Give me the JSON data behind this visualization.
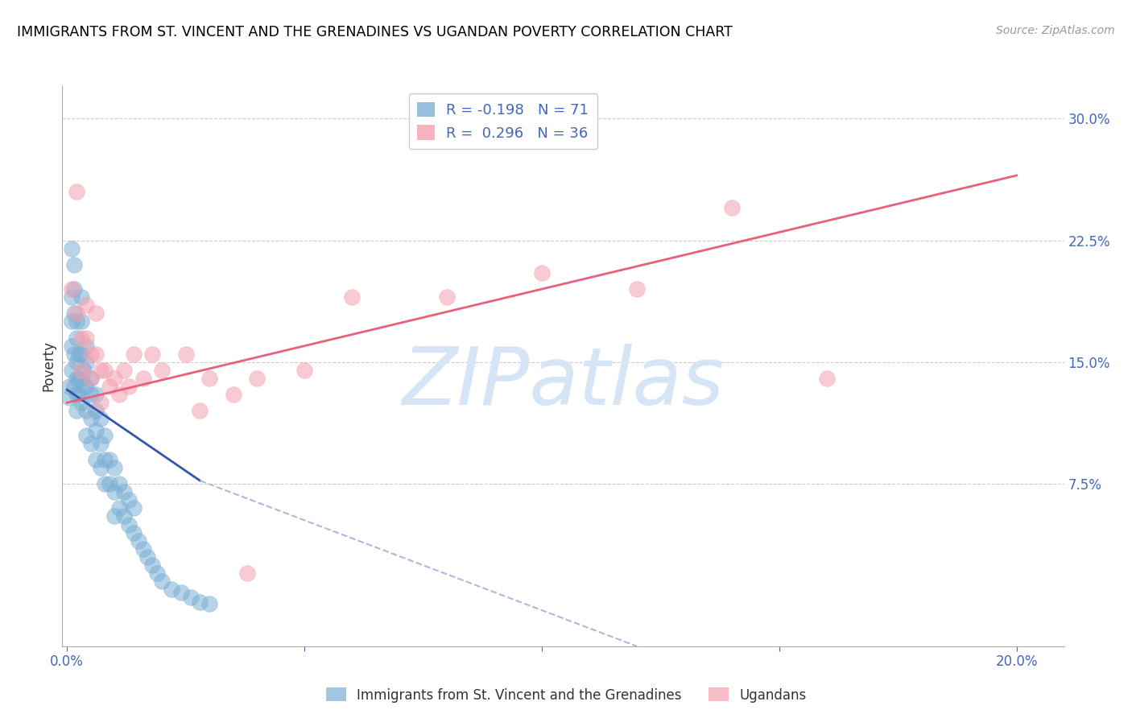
{
  "title": "IMMIGRANTS FROM ST. VINCENT AND THE GRENADINES VS UGANDAN POVERTY CORRELATION CHART",
  "source": "Source: ZipAtlas.com",
  "ylabel": "Poverty",
  "xlim": [
    -0.001,
    0.21
  ],
  "ylim": [
    -0.025,
    0.32
  ],
  "blue_R": -0.198,
  "blue_N": 71,
  "pink_R": 0.296,
  "pink_N": 36,
  "blue_color": "#7BAFD4",
  "pink_color": "#F4A0B0",
  "blue_line_color": "#3355AA",
  "pink_line_color": "#E8607A",
  "dashed_color": "#AABBDD",
  "watermark": "ZIPatlas",
  "watermark_color": "#D5E5F5",
  "legend_blue_label": "Immigrants from St. Vincent and the Grenadines",
  "legend_pink_label": "Ugandans",
  "blue_scatter_x": [
    0.0005,
    0.0005,
    0.001,
    0.001,
    0.001,
    0.001,
    0.001,
    0.0015,
    0.0015,
    0.0015,
    0.0015,
    0.0015,
    0.002,
    0.002,
    0.002,
    0.002,
    0.002,
    0.002,
    0.0025,
    0.0025,
    0.0025,
    0.003,
    0.003,
    0.003,
    0.003,
    0.003,
    0.0035,
    0.0035,
    0.004,
    0.004,
    0.004,
    0.004,
    0.004,
    0.005,
    0.005,
    0.005,
    0.005,
    0.006,
    0.006,
    0.006,
    0.006,
    0.007,
    0.007,
    0.007,
    0.008,
    0.008,
    0.008,
    0.009,
    0.009,
    0.01,
    0.01,
    0.01,
    0.011,
    0.011,
    0.012,
    0.012,
    0.013,
    0.013,
    0.014,
    0.014,
    0.015,
    0.016,
    0.017,
    0.018,
    0.019,
    0.02,
    0.022,
    0.024,
    0.026,
    0.028,
    0.03
  ],
  "blue_scatter_y": [
    0.135,
    0.128,
    0.22,
    0.19,
    0.175,
    0.16,
    0.145,
    0.21,
    0.195,
    0.18,
    0.155,
    0.135,
    0.175,
    0.165,
    0.15,
    0.14,
    0.13,
    0.12,
    0.155,
    0.14,
    0.13,
    0.19,
    0.175,
    0.155,
    0.14,
    0.125,
    0.145,
    0.135,
    0.16,
    0.15,
    0.135,
    0.12,
    0.105,
    0.14,
    0.13,
    0.115,
    0.1,
    0.13,
    0.12,
    0.108,
    0.09,
    0.115,
    0.1,
    0.085,
    0.105,
    0.09,
    0.075,
    0.09,
    0.075,
    0.085,
    0.07,
    0.055,
    0.075,
    0.06,
    0.07,
    0.055,
    0.065,
    0.05,
    0.06,
    0.045,
    0.04,
    0.035,
    0.03,
    0.025,
    0.02,
    0.015,
    0.01,
    0.008,
    0.005,
    0.002,
    0.001
  ],
  "pink_scatter_x": [
    0.001,
    0.002,
    0.002,
    0.003,
    0.003,
    0.004,
    0.004,
    0.005,
    0.005,
    0.006,
    0.006,
    0.007,
    0.007,
    0.008,
    0.009,
    0.01,
    0.011,
    0.012,
    0.013,
    0.014,
    0.016,
    0.018,
    0.02,
    0.025,
    0.03,
    0.035,
    0.04,
    0.05,
    0.06,
    0.08,
    0.1,
    0.12,
    0.14,
    0.16,
    0.038,
    0.028
  ],
  "pink_scatter_y": [
    0.195,
    0.18,
    0.255,
    0.165,
    0.145,
    0.185,
    0.165,
    0.155,
    0.14,
    0.18,
    0.155,
    0.145,
    0.125,
    0.145,
    0.135,
    0.14,
    0.13,
    0.145,
    0.135,
    0.155,
    0.14,
    0.155,
    0.145,
    0.155,
    0.14,
    0.13,
    0.14,
    0.145,
    0.19,
    0.19,
    0.205,
    0.195,
    0.245,
    0.14,
    0.02,
    0.12
  ],
  "blue_line_x": [
    0.0,
    0.028
  ],
  "blue_line_y": [
    0.133,
    0.077
  ],
  "dashed_line_x": [
    0.028,
    0.12
  ],
  "dashed_line_y": [
    0.077,
    -0.025
  ],
  "pink_line_x": [
    0.0,
    0.2
  ],
  "pink_line_y": [
    0.125,
    0.265
  ],
  "ytick_vals": [
    0.0,
    0.075,
    0.15,
    0.225,
    0.3
  ],
  "ytick_labels": [
    "",
    "7.5%",
    "15.0%",
    "22.5%",
    "30.0%"
  ],
  "xtick_vals": [
    0.0,
    0.05,
    0.1,
    0.15,
    0.2
  ],
  "xtick_labels": [
    "0.0%",
    "",
    "",
    "",
    "20.0%"
  ]
}
